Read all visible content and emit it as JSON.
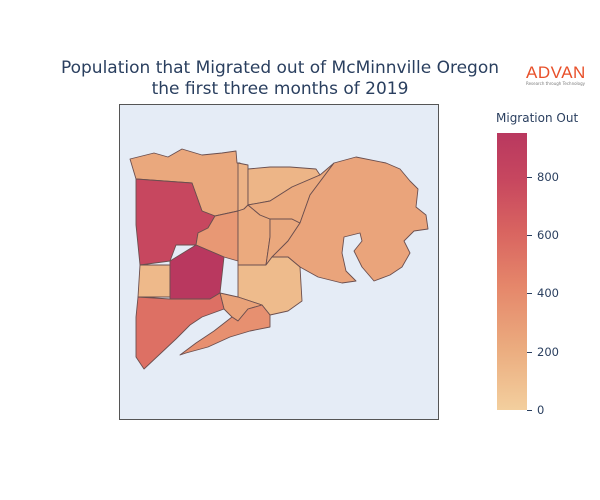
{
  "title": {
    "line1": "Population that Migrated out of McMinnville Oregon",
    "line2": "the first three months of 2019"
  },
  "logo": {
    "name": "ADVAN",
    "tagline": "Research through Technology",
    "color": "#e8502a"
  },
  "colorbar": {
    "title": "Migration Out",
    "min": 0,
    "max": 950,
    "ticks": [
      0,
      200,
      400,
      600,
      800
    ],
    "colorscale": [
      "#f3cf9e",
      "#ebac7f",
      "#e5866a",
      "#d86360",
      "#c7475f",
      "#b9385f"
    ]
  },
  "map": {
    "background": "#e5ecf6",
    "regions": [
      {
        "name": "north-strip",
        "value": 210
      },
      {
        "name": "northwest-large",
        "value": 760
      },
      {
        "name": "west-small",
        "value": 120
      },
      {
        "name": "center-west",
        "value": 290
      },
      {
        "name": "center-north-thin",
        "value": 150
      },
      {
        "name": "center-dark",
        "value": 950
      },
      {
        "name": "center",
        "value": 200
      },
      {
        "name": "center-east-small",
        "value": 210
      },
      {
        "name": "north-east-strip",
        "value": 140
      },
      {
        "name": "north-center",
        "value": 200
      },
      {
        "name": "east-large",
        "value": 230
      },
      {
        "name": "south-center-light",
        "value": 110
      },
      {
        "name": "southwest",
        "value": 500
      },
      {
        "name": "south-center",
        "value": 330
      },
      {
        "name": "south-small",
        "value": 240
      }
    ]
  }
}
